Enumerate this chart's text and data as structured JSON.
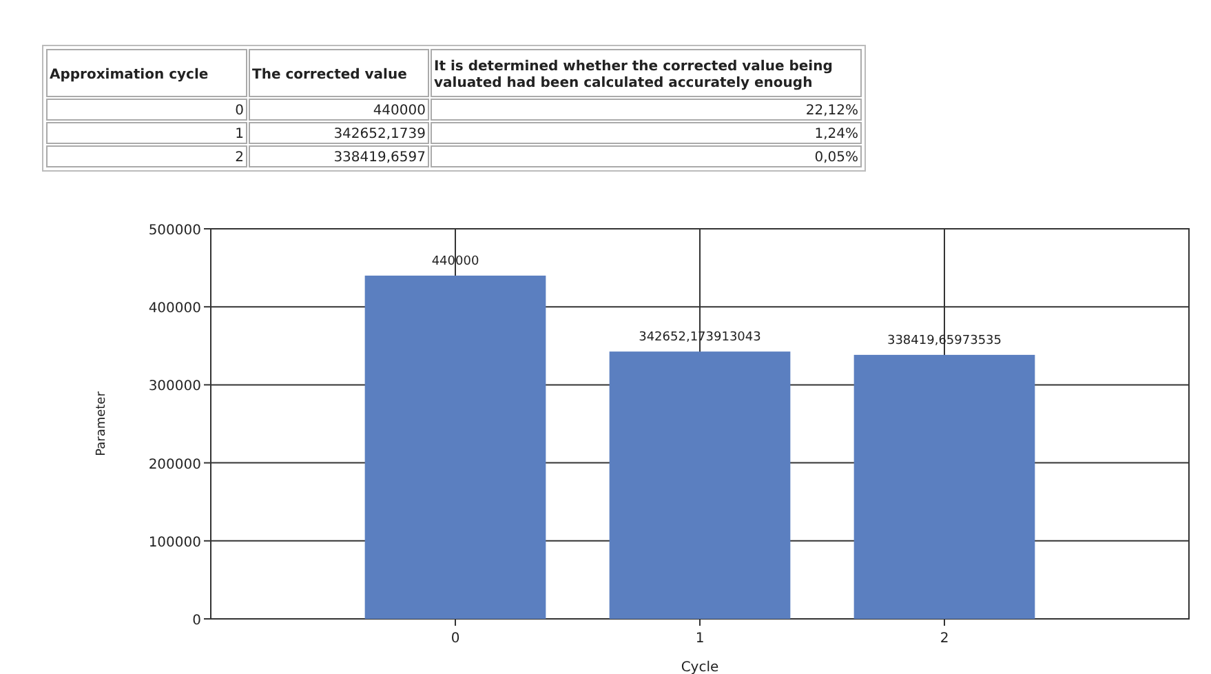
{
  "chart_data": [
    {
      "type": "other",
      "categories": [
        "Approximation cycle",
        "The corrected value",
        "It is determined whether the corrected value being valuated had been calculated accurately enough"
      ],
      "annotations": [
        "0",
        "440000",
        "22,12%",
        "1",
        "342652,1739",
        "1,24%",
        "2",
        "338419,6597",
        "0,05%"
      ]
    },
    {
      "type": "bar",
      "x": [
        0,
        1,
        2
      ],
      "values": [
        440000,
        342652.173913043,
        338419.65973535
      ],
      "value_labels": [
        "440000",
        "342652,173913043",
        "338419,65973535"
      ],
      "color": "#5b7fc0",
      "xlim": [
        -1,
        3
      ],
      "xticks": [
        0,
        1,
        2
      ],
      "ylim": [
        0,
        500000
      ],
      "yticks": [
        0,
        100000,
        200000,
        300000,
        400000,
        500000
      ],
      "grid": true,
      "xlabel": "Cycle",
      "ylabel": "Parameter"
    }
  ]
}
